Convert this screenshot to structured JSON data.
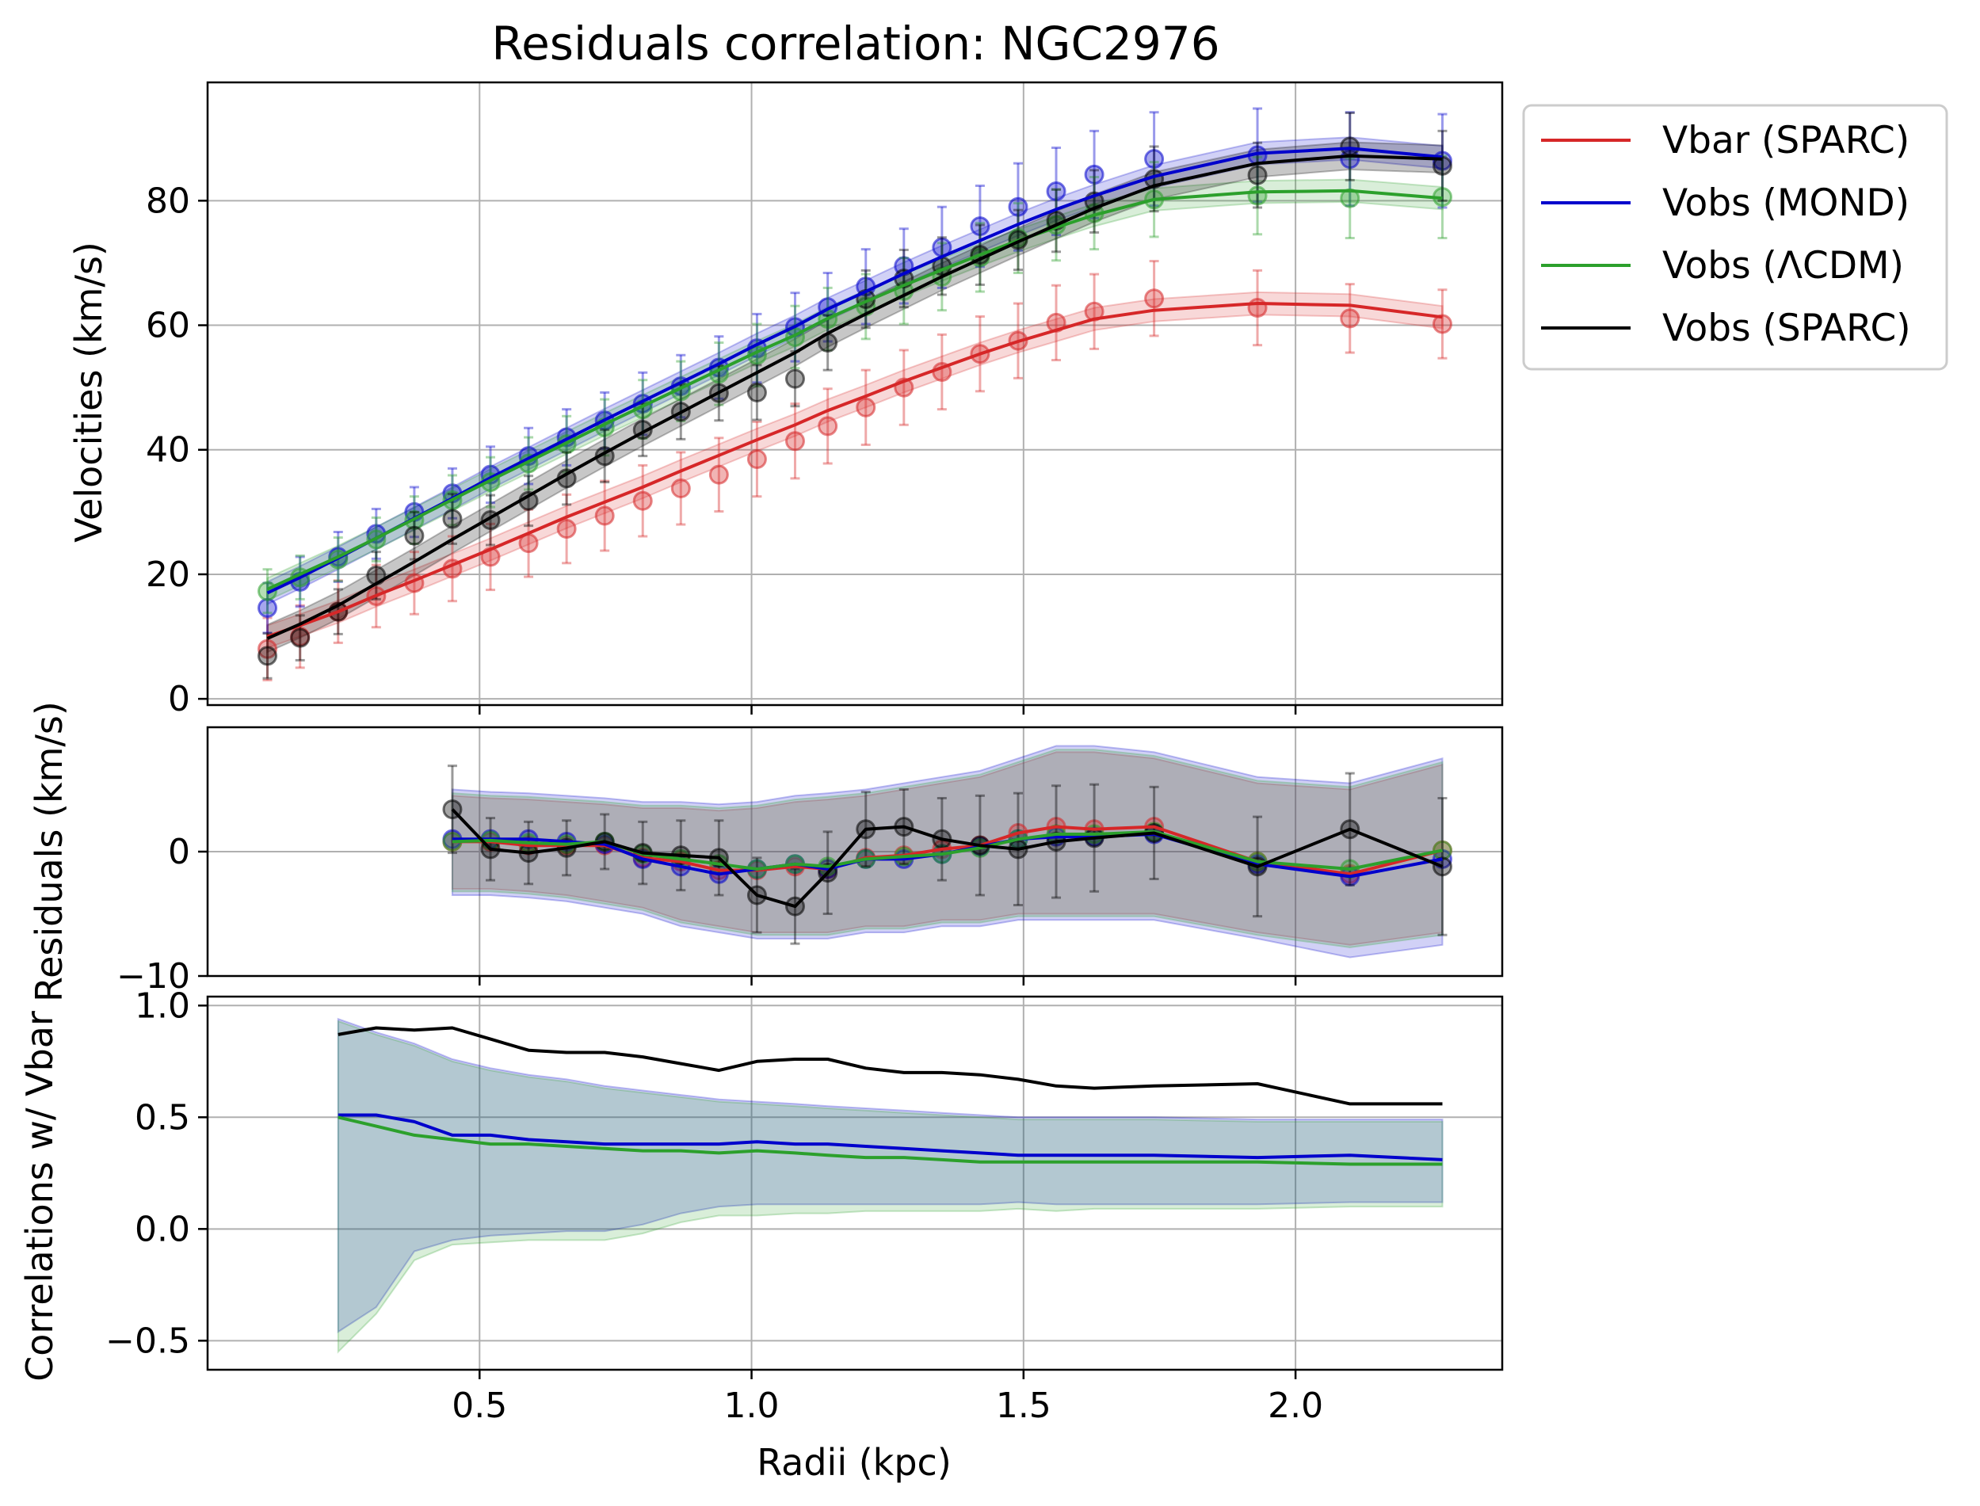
{
  "colors": {
    "vbar": "#d62728",
    "mond": "#0000cc",
    "lcdm": "#2ca02c",
    "sparc": "#000000",
    "grid": "#b0b0b0"
  },
  "chart_data": [
    {
      "id": "velocities",
      "type": "line",
      "title": "Residuals correlation: NGC2976",
      "xlabel": "",
      "ylabel": "Velocities (km/s)",
      "xlim": [
        0.0,
        2.38
      ],
      "ylim": [
        -1,
        99
      ],
      "xticks": [
        0.5,
        1.0,
        1.5,
        2.0
      ],
      "yticks": [
        0,
        20,
        40,
        60,
        80
      ],
      "ytick_labels": [
        "0",
        "20",
        "40",
        "60",
        "80"
      ],
      "grid": true,
      "legend_position": "outside upper right",
      "legend": [
        "Vbar (SPARC)",
        "Vobs (MOND)",
        "Vobs (ΛCDM)",
        "Vobs (SPARC)"
      ],
      "x": [
        0.11,
        0.17,
        0.24,
        0.31,
        0.38,
        0.45,
        0.52,
        0.59,
        0.66,
        0.73,
        0.8,
        0.87,
        0.94,
        1.01,
        1.08,
        1.14,
        1.21,
        1.28,
        1.35,
        1.42,
        1.49,
        1.56,
        1.63,
        1.74,
        1.93,
        2.1,
        2.27
      ],
      "series": [
        {
          "name": "Vbar (SPARC)",
          "color_key": "vbar",
          "line": [
            10.0,
            11.8,
            14.0,
            16.6,
            19.0,
            21.5,
            24.0,
            26.6,
            29.2,
            31.6,
            34.0,
            36.6,
            39.1,
            41.6,
            44.0,
            46.3,
            48.6,
            51.0,
            53.2,
            55.4,
            57.4,
            59.2,
            61.0,
            62.4,
            63.5,
            63.2,
            61.3
          ],
          "band": 1.8,
          "points": [
            8.0,
            10.0,
            14.0,
            16.5,
            18.6,
            20.9,
            22.8,
            25.0,
            27.3,
            29.4,
            31.8,
            33.8,
            36.0,
            38.5,
            41.4,
            43.8,
            46.8,
            50.0,
            52.5,
            55.4,
            57.5,
            60.4,
            62.2,
            64.3,
            62.8,
            61.1,
            60.2
          ],
          "errors": [
            5.0,
            5.0,
            5.0,
            5.0,
            5.0,
            5.2,
            5.3,
            5.4,
            5.5,
            5.6,
            5.7,
            5.8,
            5.9,
            6.0,
            6.0,
            6.0,
            6.0,
            6.0,
            6.0,
            6.0,
            6.0,
            6.0,
            6.0,
            6.0,
            6.0,
            5.5,
            5.5
          ]
        },
        {
          "name": "Vobs (MOND)",
          "color_key": "mond",
          "line": [
            17.0,
            19.5,
            22.6,
            25.8,
            29.0,
            32.2,
            35.5,
            38.6,
            41.7,
            44.8,
            47.8,
            50.8,
            53.8,
            56.9,
            59.8,
            62.6,
            65.4,
            68.3,
            71.0,
            73.6,
            76.2,
            78.6,
            80.8,
            83.9,
            87.6,
            88.4,
            87.0
          ],
          "band": 1.8,
          "points": [
            14.6,
            18.8,
            22.8,
            26.5,
            30.0,
            33.0,
            36.0,
            39.0,
            42.0,
            44.7,
            47.4,
            50.2,
            53.2,
            56.3,
            59.7,
            62.9,
            66.2,
            69.5,
            72.5,
            75.9,
            79.0,
            81.5,
            84.2,
            86.7,
            87.3,
            86.7,
            86.4
          ],
          "errors": [
            4.0,
            4.0,
            4.0,
            4.0,
            4.0,
            4.0,
            4.5,
            4.5,
            4.5,
            4.5,
            5.0,
            5.0,
            5.0,
            5.5,
            5.5,
            5.5,
            6.0,
            6.0,
            6.5,
            6.5,
            7.0,
            7.0,
            7.0,
            7.5,
            7.5,
            7.5,
            7.5
          ]
        },
        {
          "name": "Vobs (ΛCDM)",
          "color_key": "lcdm",
          "line": [
            17.6,
            20.0,
            22.8,
            25.8,
            28.9,
            32.0,
            35.1,
            38.1,
            41.1,
            44.1,
            47.0,
            49.9,
            52.8,
            55.7,
            58.4,
            61.1,
            63.8,
            66.4,
            68.9,
            71.3,
            73.6,
            75.7,
            77.7,
            80.2,
            81.4,
            81.6,
            80.4
          ],
          "band": 1.8,
          "points": [
            17.3,
            19.5,
            22.4,
            25.6,
            28.7,
            31.9,
            34.8,
            37.8,
            40.9,
            43.6,
            46.5,
            49.4,
            52.2,
            55.2,
            58.1,
            61.0,
            63.0,
            65.5,
            67.8,
            70.9,
            74.0,
            76.1,
            78.0,
            80.2,
            80.8,
            80.4,
            80.6
          ],
          "errors": [
            3.5,
            3.5,
            3.5,
            3.5,
            3.8,
            4.0,
            4.0,
            4.2,
            4.5,
            4.5,
            4.7,
            4.8,
            5.0,
            5.0,
            5.0,
            5.0,
            5.2,
            5.3,
            5.4,
            5.5,
            5.6,
            5.7,
            5.8,
            6.0,
            6.2,
            6.4,
            6.6
          ]
        },
        {
          "name": "Vobs (SPARC)",
          "color_key": "sparc",
          "line": [
            9.7,
            12.0,
            15.0,
            18.5,
            22.0,
            25.6,
            29.1,
            32.6,
            36.1,
            39.5,
            42.8,
            46.0,
            49.2,
            52.4,
            55.6,
            58.7,
            61.8,
            64.8,
            67.8,
            70.6,
            73.4,
            76.1,
            78.8,
            82.4,
            86.0,
            87.2,
            86.7
          ],
          "band": 2.2,
          "points": [
            6.9,
            9.8,
            14.0,
            19.8,
            26.2,
            28.9,
            28.7,
            31.8,
            35.4,
            39.0,
            43.2,
            46.1,
            49.1,
            49.2,
            51.4,
            57.2,
            64.2,
            67.5,
            69.5,
            71.3,
            73.7,
            76.8,
            79.9,
            83.5,
            84.1,
            88.7,
            85.6
          ],
          "errors": [
            3.6,
            3.6,
            3.6,
            3.8,
            3.8,
            4.0,
            4.0,
            4.0,
            4.2,
            4.2,
            4.2,
            4.4,
            4.4,
            4.4,
            4.4,
            4.4,
            4.6,
            4.6,
            4.6,
            4.8,
            4.8,
            5.0,
            5.0,
            5.2,
            5.2,
            5.4,
            5.6
          ]
        }
      ]
    },
    {
      "id": "residuals",
      "type": "line",
      "title": "",
      "xlabel": "",
      "ylabel": "Residuals (km/s)",
      "xlim": [
        0.0,
        2.38
      ],
      "ylim": [
        -10,
        10
      ],
      "xticks": [
        0.5,
        1.0,
        1.5,
        2.0
      ],
      "yticks": [
        -10,
        0
      ],
      "ytick_labels": [
        "−10",
        "0"
      ],
      "grid": true,
      "x": [
        0.45,
        0.52,
        0.59,
        0.66,
        0.73,
        0.8,
        0.87,
        0.94,
        1.01,
        1.08,
        1.14,
        1.21,
        1.28,
        1.35,
        1.42,
        1.49,
        1.56,
        1.63,
        1.74,
        1.93,
        2.1,
        2.27
      ],
      "series": [
        {
          "name": "Vbar (SPARC)",
          "color_key": "vbar",
          "values": [
            0.8,
            0.8,
            0.5,
            0.5,
            0.5,
            -0.5,
            -0.8,
            -1.5,
            -1.5,
            -1.2,
            -1.4,
            -0.5,
            -0.3,
            0.2,
            0.5,
            1.5,
            2.0,
            1.8,
            2.0,
            -0.8,
            -1.8,
            0.1
          ],
          "band_low": [
            -3.0,
            -3.0,
            -3.2,
            -3.5,
            -4.0,
            -4.5,
            -5.5,
            -6.0,
            -6.5,
            -6.5,
            -6.5,
            -6.0,
            -6.0,
            -5.5,
            -5.5,
            -5.0,
            -5.0,
            -5.0,
            -5.0,
            -6.5,
            -7.5,
            -6.5
          ],
          "band_high": [
            4.5,
            4.3,
            4.2,
            4.0,
            3.8,
            3.5,
            3.5,
            3.3,
            3.5,
            4.0,
            4.2,
            4.5,
            5.0,
            5.5,
            6.0,
            7.0,
            8.0,
            8.0,
            7.5,
            5.5,
            5.0,
            7.0
          ]
        },
        {
          "name": "Vobs (MOND)",
          "color_key": "mond",
          "values": [
            1.0,
            1.0,
            1.0,
            0.8,
            0.6,
            -0.6,
            -1.2,
            -1.8,
            -1.4,
            -1.0,
            -1.4,
            -0.6,
            -0.6,
            -0.2,
            0.4,
            1.0,
            1.2,
            1.2,
            1.4,
            -1.0,
            -2.0,
            -0.6
          ],
          "band_low": [
            -3.5,
            -3.5,
            -3.7,
            -4.0,
            -4.5,
            -5.0,
            -6.0,
            -6.5,
            -7.0,
            -7.0,
            -7.0,
            -6.5,
            -6.5,
            -6.0,
            -6.0,
            -5.5,
            -5.5,
            -5.5,
            -5.5,
            -7.0,
            -8.5,
            -7.5
          ],
          "band_high": [
            5.0,
            4.8,
            4.7,
            4.5,
            4.3,
            4.0,
            4.0,
            3.8,
            4.0,
            4.5,
            4.7,
            5.0,
            5.5,
            6.0,
            6.5,
            7.5,
            8.5,
            8.5,
            8.0,
            6.0,
            5.5,
            7.5
          ]
        },
        {
          "name": "Vobs (ΛCDM)",
          "color_key": "lcdm",
          "values": [
            0.8,
            0.9,
            0.7,
            0.6,
            0.8,
            -0.2,
            -0.6,
            -1.0,
            -1.4,
            -1.0,
            -1.2,
            -0.6,
            -0.4,
            -0.2,
            0.3,
            1.0,
            1.4,
            1.4,
            1.6,
            -0.8,
            -1.4,
            0.1
          ],
          "band_low": [
            -3.2,
            -3.2,
            -3.4,
            -3.7,
            -4.2,
            -4.7,
            -5.7,
            -6.2,
            -6.7,
            -6.7,
            -6.7,
            -6.2,
            -6.2,
            -5.7,
            -5.7,
            -5.2,
            -5.2,
            -5.2,
            -5.2,
            -6.7,
            -7.7,
            -6.7
          ],
          "band_high": [
            4.7,
            4.5,
            4.4,
            4.2,
            4.0,
            3.7,
            3.7,
            3.5,
            3.7,
            4.2,
            4.4,
            4.7,
            5.2,
            5.7,
            6.2,
            7.2,
            8.2,
            8.2,
            7.7,
            5.7,
            5.2,
            7.2
          ]
        },
        {
          "name": "Vobs (SPARC)",
          "color_key": "sparc",
          "values": [
            3.4,
            0.2,
            -0.1,
            0.3,
            0.8,
            -0.1,
            -0.3,
            -0.5,
            -3.5,
            -4.4,
            -1.7,
            1.8,
            2.0,
            1.0,
            0.5,
            0.2,
            0.8,
            1.1,
            1.5,
            -1.2,
            1.8,
            -1.2
          ],
          "errors": [
            3.5,
            2.5,
            2.5,
            2.2,
            2.2,
            2.5,
            2.8,
            3.0,
            3.0,
            3.0,
            3.3,
            3.0,
            3.0,
            3.3,
            4.0,
            4.5,
            4.5,
            4.3,
            3.7,
            4.0,
            4.5,
            5.5
          ]
        }
      ]
    },
    {
      "id": "correlations",
      "type": "line",
      "title": "",
      "xlabel": "Radii (kpc)",
      "ylabel": "Correlations w/ Vbar",
      "xlim": [
        0.0,
        2.38
      ],
      "ylim": [
        -0.63,
        1.04
      ],
      "xticks": [
        0.5,
        1.0,
        1.5,
        2.0
      ],
      "xtick_labels": [
        "0.5",
        "1.0",
        "1.5",
        "2.0"
      ],
      "yticks": [
        -0.5,
        0.0,
        0.5,
        1.0
      ],
      "ytick_labels": [
        "−0.5",
        "0.0",
        "0.5",
        "1.0"
      ],
      "grid": true,
      "x": [
        0.24,
        0.31,
        0.38,
        0.45,
        0.52,
        0.59,
        0.66,
        0.73,
        0.8,
        0.87,
        0.94,
        1.01,
        1.08,
        1.14,
        1.21,
        1.28,
        1.35,
        1.42,
        1.49,
        1.56,
        1.63,
        1.74,
        1.93,
        2.1,
        2.27
      ],
      "series": [
        {
          "name": "Vobs (MOND)",
          "color_key": "mond",
          "values": [
            0.51,
            0.51,
            0.48,
            0.42,
            0.42,
            0.4,
            0.39,
            0.38,
            0.38,
            0.38,
            0.38,
            0.39,
            0.38,
            0.38,
            0.37,
            0.36,
            0.35,
            0.34,
            0.33,
            0.33,
            0.33,
            0.33,
            0.32,
            0.33,
            0.31
          ],
          "band_low": [
            -0.46,
            -0.35,
            -0.1,
            -0.05,
            -0.03,
            -0.02,
            -0.01,
            -0.01,
            0.02,
            0.07,
            0.1,
            0.11,
            0.11,
            0.11,
            0.11,
            0.11,
            0.11,
            0.11,
            0.12,
            0.11,
            0.11,
            0.11,
            0.11,
            0.12,
            0.12
          ],
          "band_high": [
            0.94,
            0.88,
            0.83,
            0.76,
            0.72,
            0.69,
            0.67,
            0.64,
            0.62,
            0.6,
            0.58,
            0.57,
            0.56,
            0.55,
            0.54,
            0.53,
            0.52,
            0.51,
            0.5,
            0.5,
            0.5,
            0.5,
            0.49,
            0.49,
            0.49
          ]
        },
        {
          "name": "Vobs (ΛCDM)",
          "color_key": "lcdm",
          "values": [
            0.5,
            0.46,
            0.42,
            0.4,
            0.38,
            0.38,
            0.37,
            0.36,
            0.35,
            0.35,
            0.34,
            0.35,
            0.34,
            0.33,
            0.32,
            0.32,
            0.31,
            0.3,
            0.3,
            0.3,
            0.3,
            0.3,
            0.3,
            0.29,
            0.29
          ],
          "band_low": [
            -0.55,
            -0.38,
            -0.14,
            -0.07,
            -0.06,
            -0.05,
            -0.05,
            -0.05,
            -0.02,
            0.03,
            0.06,
            0.06,
            0.07,
            0.07,
            0.08,
            0.08,
            0.08,
            0.08,
            0.09,
            0.08,
            0.09,
            0.09,
            0.09,
            0.1,
            0.1
          ],
          "band_high": [
            0.93,
            0.87,
            0.82,
            0.75,
            0.71,
            0.68,
            0.66,
            0.63,
            0.61,
            0.59,
            0.57,
            0.56,
            0.55,
            0.54,
            0.53,
            0.52,
            0.51,
            0.5,
            0.49,
            0.49,
            0.49,
            0.49,
            0.48,
            0.48,
            0.48
          ]
        },
        {
          "name": "Vobs (SPARC)",
          "color_key": "sparc",
          "values": [
            0.87,
            0.9,
            0.89,
            0.9,
            0.85,
            0.8,
            0.79,
            0.79,
            0.77,
            0.74,
            0.71,
            0.75,
            0.76,
            0.76,
            0.72,
            0.7,
            0.7,
            0.69,
            0.67,
            0.64,
            0.63,
            0.64,
            0.65,
            0.56,
            0.56
          ]
        }
      ]
    }
  ]
}
